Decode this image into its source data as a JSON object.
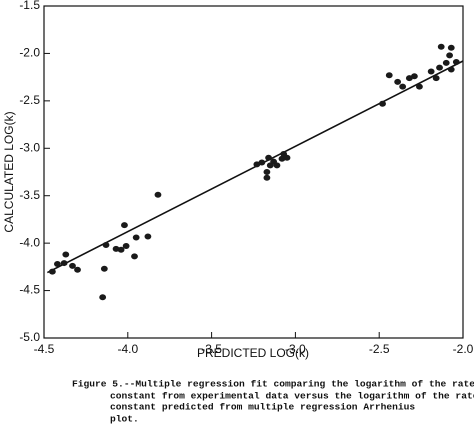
{
  "chart_data": {
    "type": "scatter",
    "x_label": "PREDICTED LOG(k)",
    "y_label": "CALCULATED LOG(k)",
    "caption": [
      "Figure 5.--Multiple regression fit comparing the logarithm of the rate",
      "constant from experimental data versus the logarithm of the rate",
      "constant predicted from multiple regression Arrhenius",
      "plot."
    ],
    "xlim": [
      -4.5,
      -2.0
    ],
    "ylim": [
      -5.0,
      -1.5
    ],
    "xticks": [
      -4.5,
      {
        "value": -4.0,
        "label": "-4.0"
      },
      -3.5,
      {
        "value": -3.0,
        "label": "-3.0"
      },
      -2.5,
      {
        "value": -2.0,
        "label": "-2.0"
      }
    ],
    "yticks": [
      -1.5,
      {
        "value": -2.0,
        "label": "-2.0"
      },
      -2.5,
      {
        "value": -3.0,
        "label": "-3.0"
      },
      -3.5,
      {
        "value": -4.0,
        "label": "-4.0"
      },
      -4.5,
      {
        "value": -5.0,
        "label": "-5.0"
      }
    ],
    "color": "#1a1a1a",
    "x": [
      -4.45,
      -4.42,
      -4.38,
      -4.37,
      -4.33,
      -4.3,
      -4.15,
      -4.14,
      -4.13,
      -4.07,
      -4.04,
      -4.02,
      -4.01,
      -3.96,
      -3.95,
      -3.88,
      -3.82,
      -3.23,
      -3.2,
      -3.17,
      -3.17,
      -3.16,
      -3.15,
      -3.13,
      -3.11,
      -3.08,
      -3.07,
      -3.05,
      -2.48,
      -2.44,
      -2.39,
      -2.36,
      -2.32,
      -2.29,
      -2.26,
      -2.19,
      -2.16,
      -2.14,
      -2.13,
      -2.1,
      -2.08,
      -2.07,
      -2.07,
      -2.04
    ],
    "values": [
      -4.3,
      -4.22,
      -4.21,
      -4.12,
      -4.24,
      -4.28,
      -4.57,
      -4.27,
      -4.02,
      -4.06,
      -4.07,
      -3.81,
      -4.03,
      -4.14,
      -3.94,
      -3.93,
      -3.49,
      -3.17,
      -3.15,
      -3.25,
      -3.31,
      -3.1,
      -3.18,
      -3.14,
      -3.18,
      -3.11,
      -3.06,
      -3.1,
      -2.53,
      -2.23,
      -2.3,
      -2.35,
      -2.26,
      -2.24,
      -2.35,
      -2.19,
      -2.26,
      -2.15,
      -1.93,
      -2.1,
      -2.02,
      -1.94,
      -2.17,
      -2.09
    ],
    "fit_line": {
      "x": [
        -4.48,
        -2.0
      ],
      "values": [
        -4.31,
        -2.08
      ]
    }
  }
}
